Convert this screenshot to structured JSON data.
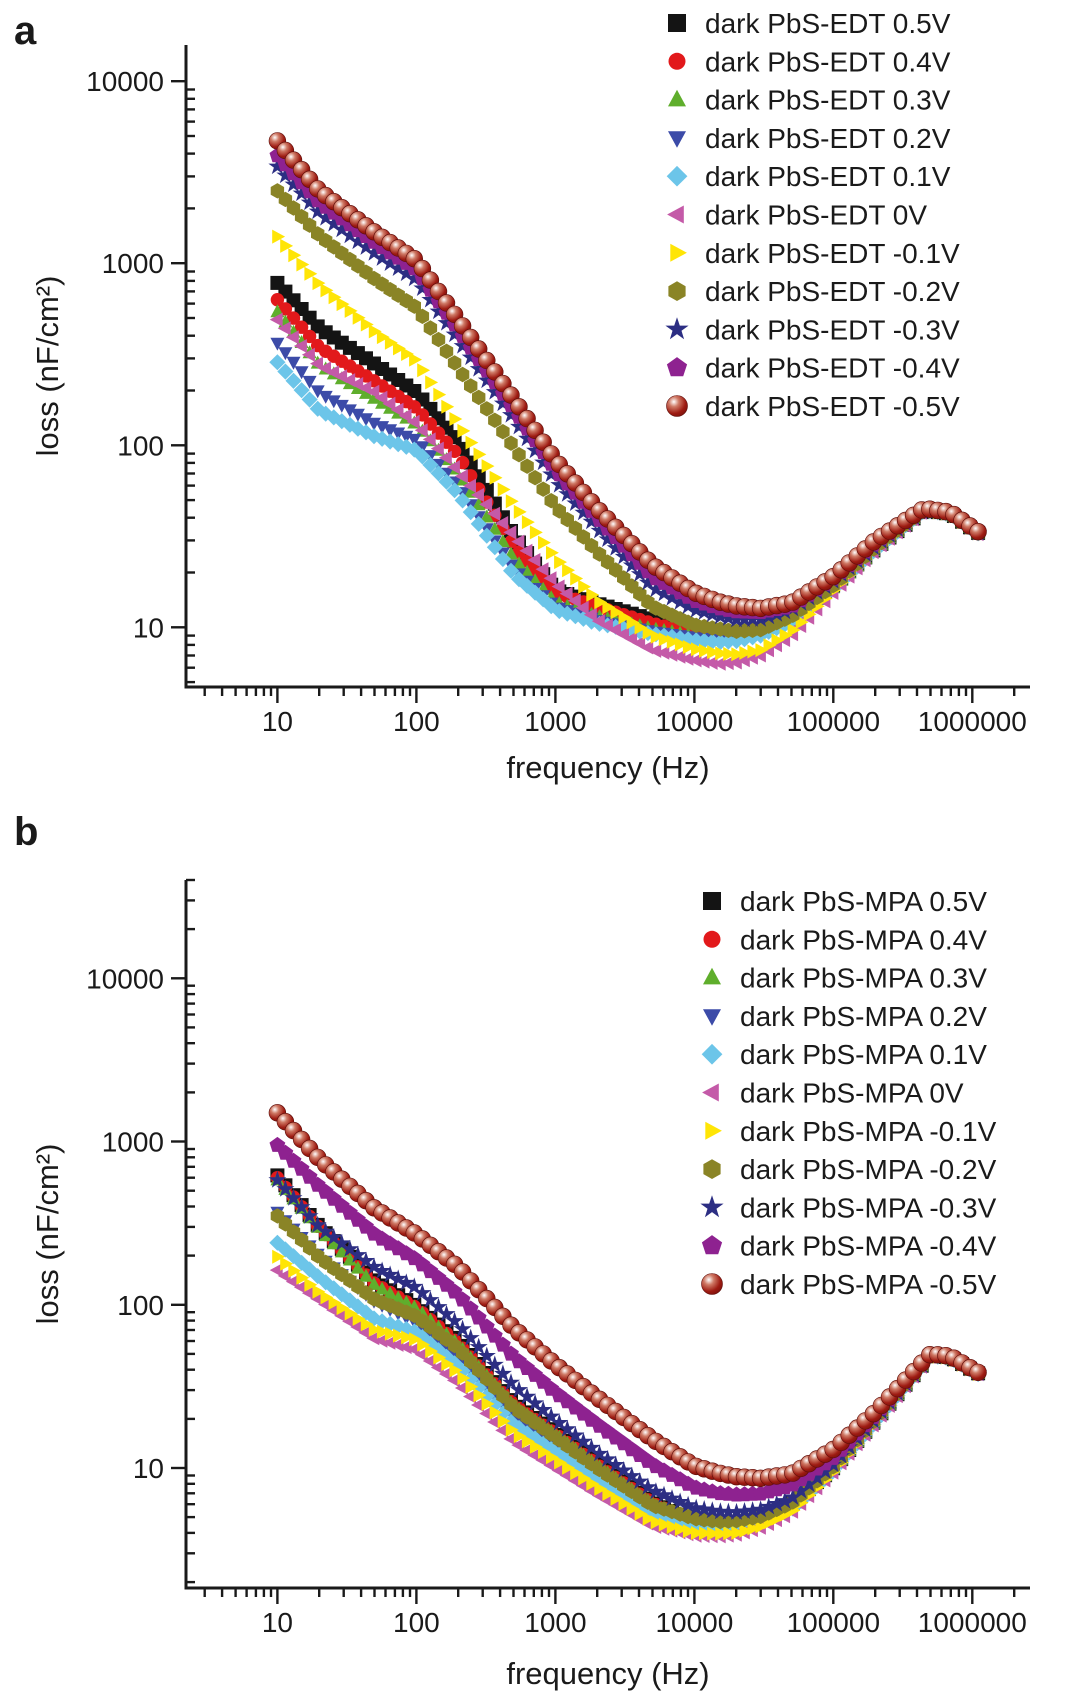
{
  "figure": {
    "background": "#ffffff",
    "panels": [
      {
        "label": "a",
        "legend_position": "top-right"
      },
      {
        "label": "b",
        "legend_position": "top-right"
      }
    ]
  },
  "chart_data": [
    {
      "panel_label": "a",
      "type": "scatter",
      "x_label": "frequency (Hz)",
      "y_label": "loss (nF/cm²)",
      "x_scale": "log",
      "y_scale": "log",
      "x_range": [
        2.2,
        2600000
      ],
      "y_range": [
        4.7,
        15800
      ],
      "x_major_ticks": [
        10,
        100,
        1000,
        10000,
        100000,
        1000000
      ],
      "y_major_ticks": [
        10,
        100,
        1000,
        10000
      ],
      "grid": false,
      "legend_position": "top-right",
      "x_anchors": [
        10,
        20,
        50,
        100,
        200,
        500,
        1000,
        2000,
        5000,
        10000,
        15000,
        20000,
        30000,
        50000,
        100000,
        200000,
        450000,
        700000,
        1100000
      ],
      "series": [
        {
          "name": "dark PbS-EDT 0.5V",
          "marker": "square",
          "color": "#141414",
          "values": [
            780,
            440,
            280,
            195,
            105,
            32,
            16,
            13.5,
            11,
            9.5,
            9.2,
            9.3,
            9.8,
            11.5,
            17,
            27,
            44,
            42,
            33
          ]
        },
        {
          "name": "dark PbS-EDT 0.4V",
          "marker": "circle",
          "color": "#e2191b",
          "values": [
            630,
            345,
            225,
            160,
            88,
            28,
            15.5,
            13,
            10.5,
            9.3,
            9.0,
            9.1,
            9.6,
            11.3,
            16.8,
            26.9,
            44,
            42,
            33
          ]
        },
        {
          "name": "dark PbS-EDT 0.3V",
          "marker": "triangle-up",
          "color": "#5fae2c",
          "values": [
            540,
            275,
            180,
            130,
            70,
            24,
            13.7,
            11.5,
            9.8,
            9.0,
            8.8,
            8.9,
            9.4,
            11.2,
            16.5,
            26.8,
            44,
            41.9,
            32.9
          ]
        },
        {
          "name": "dark PbS-EDT 0.2V",
          "marker": "triangle-down",
          "color": "#3c4ba8",
          "values": [
            365,
            195,
            132,
            107,
            60,
            21,
            13,
            11,
            9.5,
            8.8,
            8.6,
            8.7,
            9.2,
            11,
            16.3,
            26.8,
            43.8,
            41.8,
            32.8
          ]
        },
        {
          "name": "dark PbS-EDT 0.1V",
          "marker": "diamond",
          "color": "#6cc5e9",
          "values": [
            286,
            155,
            112,
            94,
            54,
            19.5,
            12.5,
            10.5,
            9.2,
            8.5,
            8.3,
            8.4,
            9.0,
            10.8,
            16.2,
            26.7,
            43.8,
            41.8,
            32.8
          ]
        },
        {
          "name": "dark PbS-EDT 0V",
          "marker": "triangle-left",
          "color": "#c45aa8",
          "values": [
            490,
            275,
            196,
            132,
            72,
            32,
            17.5,
            11,
            7.5,
            6.6,
            6.3,
            6.4,
            7.0,
            9.0,
            15.5,
            26.5,
            43.6,
            41.6,
            32.5
          ]
        },
        {
          "name": "dark PbS-EDT -0.1V",
          "marker": "triangle-right",
          "color": "#ffe506",
          "values": [
            1400,
            760,
            420,
            290,
            130,
            47,
            24,
            14,
            9,
            7.6,
            7.2,
            7.1,
            7.5,
            9.5,
            16,
            26.8,
            43.8,
            41.8,
            32.8
          ]
        },
        {
          "name": "dark PbS-EDT -0.2V",
          "marker": "hexagon",
          "color": "#8a8426",
          "values": [
            2500,
            1420,
            820,
            570,
            265,
            98,
            46,
            26,
            13,
            10.3,
            9.8,
            9.5,
            9.7,
            11.5,
            17,
            27.5,
            44.2,
            42,
            33
          ]
        },
        {
          "name": "dark PbS-EDT -0.3V",
          "marker": "star",
          "color": "#2c2e83",
          "values": [
            3400,
            1880,
            1130,
            810,
            380,
            140,
            64,
            35,
            16.5,
            12.5,
            11.5,
            11,
            11.1,
            12.5,
            18,
            28,
            44.4,
            42.2,
            33
          ]
        },
        {
          "name": "dark PbS-EDT -0.4V",
          "marker": "pentagon",
          "color": "#8e2290",
          "values": [
            3900,
            2160,
            1300,
            920,
            430,
            158,
            73,
            40,
            19,
            14,
            12.7,
            12.2,
            12.1,
            13,
            18.5,
            29,
            44.8,
            42.5,
            33.2
          ]
        },
        {
          "name": "dark PbS-EDT -0.5V",
          "marker": "sphere",
          "color": "#8e1511",
          "values": [
            4700,
            2500,
            1480,
            1040,
            490,
            180,
            83,
            45,
            22,
            15.5,
            13.8,
            13.1,
            12.7,
            13.6,
            19,
            30,
            45,
            42.8,
            33.5
          ]
        }
      ]
    },
    {
      "panel_label": "b",
      "type": "scatter",
      "x_label": "frequency (Hz)",
      "y_label": "loss (nF/cm²)",
      "x_scale": "log",
      "y_scale": "log",
      "x_range": [
        2.2,
        2600000
      ],
      "y_range": [
        1.84,
        40000
      ],
      "x_major_ticks": [
        10,
        100,
        1000,
        10000,
        100000,
        1000000
      ],
      "y_major_ticks": [
        10,
        100,
        1000,
        10000
      ],
      "grid": false,
      "legend_position": "top-right",
      "x_anchors": [
        10,
        20,
        50,
        100,
        200,
        500,
        1000,
        2000,
        5000,
        10000,
        15000,
        20000,
        30000,
        50000,
        100000,
        200000,
        500000,
        700000,
        1100000
      ],
      "series": [
        {
          "name": "dark PbS-MPA 0.5V",
          "marker": "square",
          "color": "#141414",
          "values": [
            620,
            300,
            140,
            98,
            60,
            25,
            16.6,
            10.8,
            6.2,
            4.7,
            4.5,
            4.5,
            4.9,
            6.0,
            10,
            19.5,
            49,
            47.5,
            38
          ]
        },
        {
          "name": "dark PbS-MPA 0.4V",
          "marker": "circle",
          "color": "#e2191b",
          "values": [
            600,
            295,
            135,
            96,
            58,
            24.5,
            16.2,
            10.5,
            6.1,
            4.65,
            4.45,
            4.45,
            4.85,
            5.95,
            9.9,
            19.4,
            49,
            47.5,
            38
          ]
        },
        {
          "name": "dark PbS-MPA 0.3V",
          "marker": "triangle-up",
          "color": "#5fae2c",
          "values": [
            580,
            290,
            132,
            95,
            57,
            24,
            16,
            10.3,
            6.0,
            4.6,
            4.4,
            4.4,
            4.8,
            5.9,
            9.9,
            19.3,
            48.8,
            47.3,
            37.8
          ]
        },
        {
          "name": "dark PbS-MPA 0.2V",
          "marker": "triangle-down",
          "color": "#3c4ba8",
          "values": [
            370,
            200,
            105,
            78,
            48,
            21,
            14,
            9.2,
            5.5,
            4.4,
            4.25,
            4.3,
            4.7,
            5.7,
            9.7,
            19.1,
            48.8,
            47.3,
            37.8
          ]
        },
        {
          "name": "dark PbS-MPA 0.1V",
          "marker": "diamond",
          "color": "#6cc5e9",
          "values": [
            240,
            147,
            82,
            68,
            42,
            18.5,
            12.6,
            8.4,
            5.1,
            4.2,
            4.1,
            4.15,
            4.55,
            5.55,
            9.6,
            19,
            48.6,
            47.1,
            37.6
          ]
        },
        {
          "name": "dark PbS-MPA 0V",
          "marker": "triangle-left",
          "color": "#c45aa8",
          "values": [
            163,
            107,
            62,
            53,
            33,
            14.5,
            10,
            6.9,
            4.4,
            3.85,
            3.8,
            3.9,
            4.3,
            5.3,
            9.4,
            18.8,
            48.5,
            47,
            37.5
          ]
        },
        {
          "name": "dark PbS-MPA -0.1V",
          "marker": "triangle-right",
          "color": "#ffe506",
          "values": [
            197,
            118,
            70,
            61,
            38,
            16.5,
            11.2,
            7.6,
            4.7,
            4.0,
            3.95,
            4.0,
            4.4,
            5.4,
            9.5,
            18.9,
            48.6,
            47.1,
            37.6
          ]
        },
        {
          "name": "dark PbS-MPA -0.2V",
          "marker": "hexagon",
          "color": "#8a8426",
          "values": [
            350,
            195,
            108,
            85,
            54,
            23.5,
            15.5,
            10,
            5.9,
            4.9,
            4.7,
            4.75,
            5.05,
            6.1,
            10.2,
            19.8,
            49,
            47.5,
            38
          ]
        },
        {
          "name": "dark PbS-MPA -0.3V",
          "marker": "star",
          "color": "#2c2e83",
          "values": [
            580,
            300,
            170,
            127,
            76,
            32,
            19.7,
            12.5,
            7.3,
            5.7,
            5.4,
            5.35,
            5.55,
            6.5,
            10.5,
            20,
            49.2,
            47.6,
            38
          ]
        },
        {
          "name": "dark PbS-MPA -0.4V",
          "marker": "pentagon",
          "color": "#8e2290",
          "values": [
            950,
            530,
            270,
            189,
            115,
            48,
            29,
            18.5,
            10.5,
            7.6,
            7.0,
            6.85,
            6.95,
            7.8,
            11.5,
            21,
            49.6,
            48,
            38.2
          ]
        },
        {
          "name": "dark PbS-MPA -0.5V",
          "marker": "sphere",
          "color": "#8e1511",
          "values": [
            1500,
            780,
            390,
            270,
            170,
            72,
            43,
            27,
            15,
            10.3,
            9.3,
            8.85,
            8.65,
            9.2,
            13,
            22,
            50,
            48.3,
            38.5
          ]
        }
      ]
    }
  ]
}
